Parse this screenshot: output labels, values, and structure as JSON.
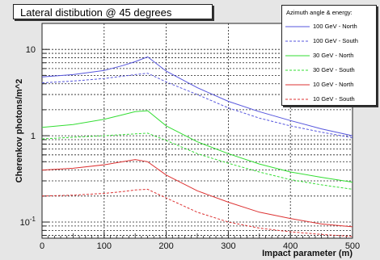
{
  "chart_data": {
    "type": "line",
    "title": "Lateral distibution @ 45 degrees",
    "xlabel": "Impact parameter (m)",
    "ylabel": "Cherenkov photons/m^2",
    "xlim": [
      0,
      500
    ],
    "ylim": [
      0.065,
      20
    ],
    "yscale": "log",
    "grid": true,
    "legend_title": "Azimuth angle & energy:",
    "legend_position": "top-right",
    "x_ticks": [
      "0",
      "100",
      "200",
      "300",
      "400",
      "500"
    ],
    "y_ticks": [
      "10",
      "1",
      "10^-1"
    ],
    "series": [
      {
        "name": "100 GeV - North",
        "color": "#5555dd",
        "dash": "solid",
        "x": [
          0,
          50,
          100,
          130,
          150,
          170,
          200,
          250,
          300,
          350,
          400,
          450,
          500
        ],
        "y": [
          4.8,
          5.1,
          5.7,
          6.5,
          7.2,
          8.2,
          5.6,
          3.6,
          2.5,
          1.9,
          1.5,
          1.2,
          1.0
        ]
      },
      {
        "name": "100 GeV - South",
        "color": "#5555dd",
        "dash": "dashed",
        "x": [
          0,
          50,
          100,
          130,
          150,
          170,
          200,
          250,
          300,
          350,
          400,
          450,
          500
        ],
        "y": [
          4.1,
          4.3,
          4.6,
          4.9,
          5.1,
          5.3,
          4.2,
          3.0,
          2.1,
          1.6,
          1.3,
          1.1,
          0.95
        ]
      },
      {
        "name": "30 GeV - North",
        "color": "#33dd33",
        "dash": "solid",
        "x": [
          0,
          50,
          100,
          130,
          150,
          170,
          200,
          250,
          300,
          350,
          400,
          450,
          500
        ],
        "y": [
          1.25,
          1.35,
          1.55,
          1.75,
          1.9,
          1.95,
          1.3,
          0.85,
          0.62,
          0.47,
          0.38,
          0.33,
          0.29
        ]
      },
      {
        "name": "30 GeV - South",
        "color": "#33dd33",
        "dash": "dashed",
        "x": [
          0,
          50,
          100,
          130,
          150,
          170,
          200,
          250,
          300,
          350,
          400,
          450,
          500
        ],
        "y": [
          0.92,
          0.96,
          1.0,
          1.03,
          1.05,
          1.07,
          0.88,
          0.62,
          0.48,
          0.38,
          0.31,
          0.27,
          0.24
        ]
      },
      {
        "name": "10 GeV - North",
        "color": "#dd3333",
        "dash": "solid",
        "x": [
          0,
          50,
          100,
          130,
          150,
          170,
          200,
          250,
          300,
          350,
          400,
          450,
          500
        ],
        "y": [
          0.4,
          0.42,
          0.46,
          0.5,
          0.53,
          0.5,
          0.35,
          0.23,
          0.17,
          0.13,
          0.11,
          0.095,
          0.088
        ]
      },
      {
        "name": "10 GeV - South",
        "color": "#dd3333",
        "dash": "dashed",
        "x": [
          0,
          50,
          100,
          130,
          150,
          170,
          200,
          250,
          300,
          350,
          400,
          450,
          500
        ],
        "y": [
          0.2,
          0.205,
          0.215,
          0.225,
          0.235,
          0.24,
          0.19,
          0.13,
          0.1,
          0.085,
          0.077,
          0.072,
          0.068
        ]
      }
    ]
  }
}
